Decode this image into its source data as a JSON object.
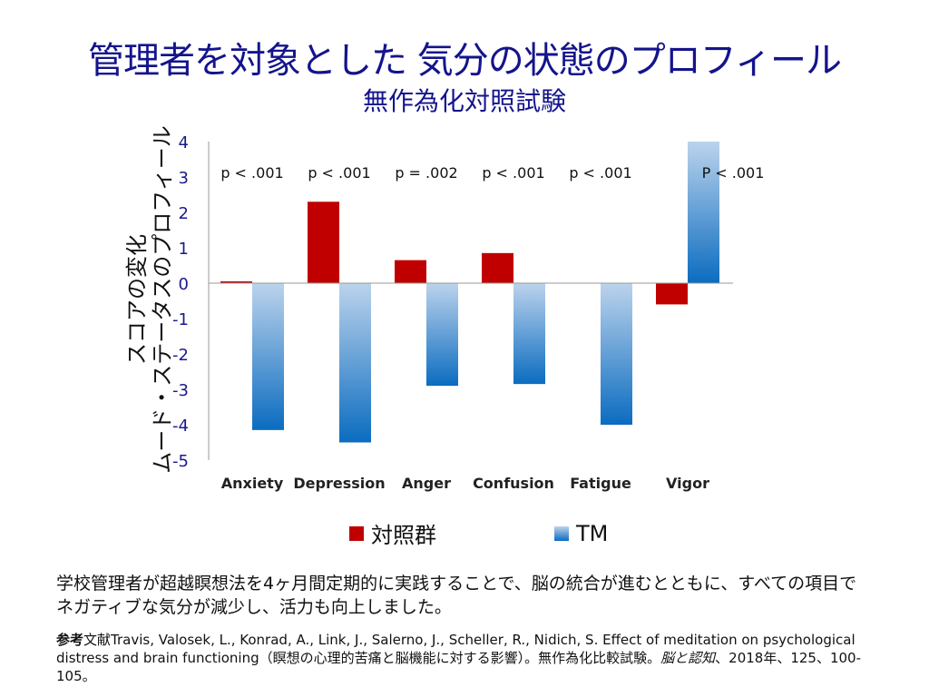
{
  "title": "管理者を対象とした 気分の状態のプロフィール",
  "subtitle": "無作為化対照試験",
  "caption": "学校管理者が超越瞑想法を4ヶ月間定期的に実践することで、脳の統合が進むとともに、すべての項目でネガティブな気分が減少し、活力も向上しました。",
  "reference": {
    "prefix": "参考",
    "text1": "文献Travis, Valosek, L., Konrad, A., Link, J., Salerno, J., Scheller, R., Nidich, S. Effect of meditation on psychological distress and brain functioning（瞑想の心理的苦痛と脳機能に対する影響）。無作為化比較試験。",
    "journal": "脳と認知",
    "text2": "、2018年、125、100-105。"
  },
  "chart_data": {
    "type": "bar",
    "ylabel_lines": [
      "スコアの変化",
      "ムード・ステータスのプロフィール"
    ],
    "categories": [
      "Anxiety",
      "Depression",
      "Anger",
      "Confusion",
      "Fatigue",
      "Vigor"
    ],
    "p_values": [
      "p < .001",
      "p < .001",
      "p = .002",
      "p < .001",
      "p < .001",
      "P < .001"
    ],
    "ylim": [
      -5,
      4
    ],
    "yticks": [
      4,
      3,
      2,
      1,
      0,
      -1,
      -2,
      -3,
      -4,
      -5
    ],
    "series": [
      {
        "name": "対照群",
        "color": "#c00000",
        "values": [
          0.05,
          2.3,
          0.65,
          0.85,
          0.0,
          -0.6
        ]
      },
      {
        "name": "TM",
        "color": "#1a75c4",
        "values": [
          -4.15,
          -4.5,
          -2.9,
          -2.85,
          -4.0,
          4.0
        ]
      }
    ],
    "legend": "bottom"
  }
}
